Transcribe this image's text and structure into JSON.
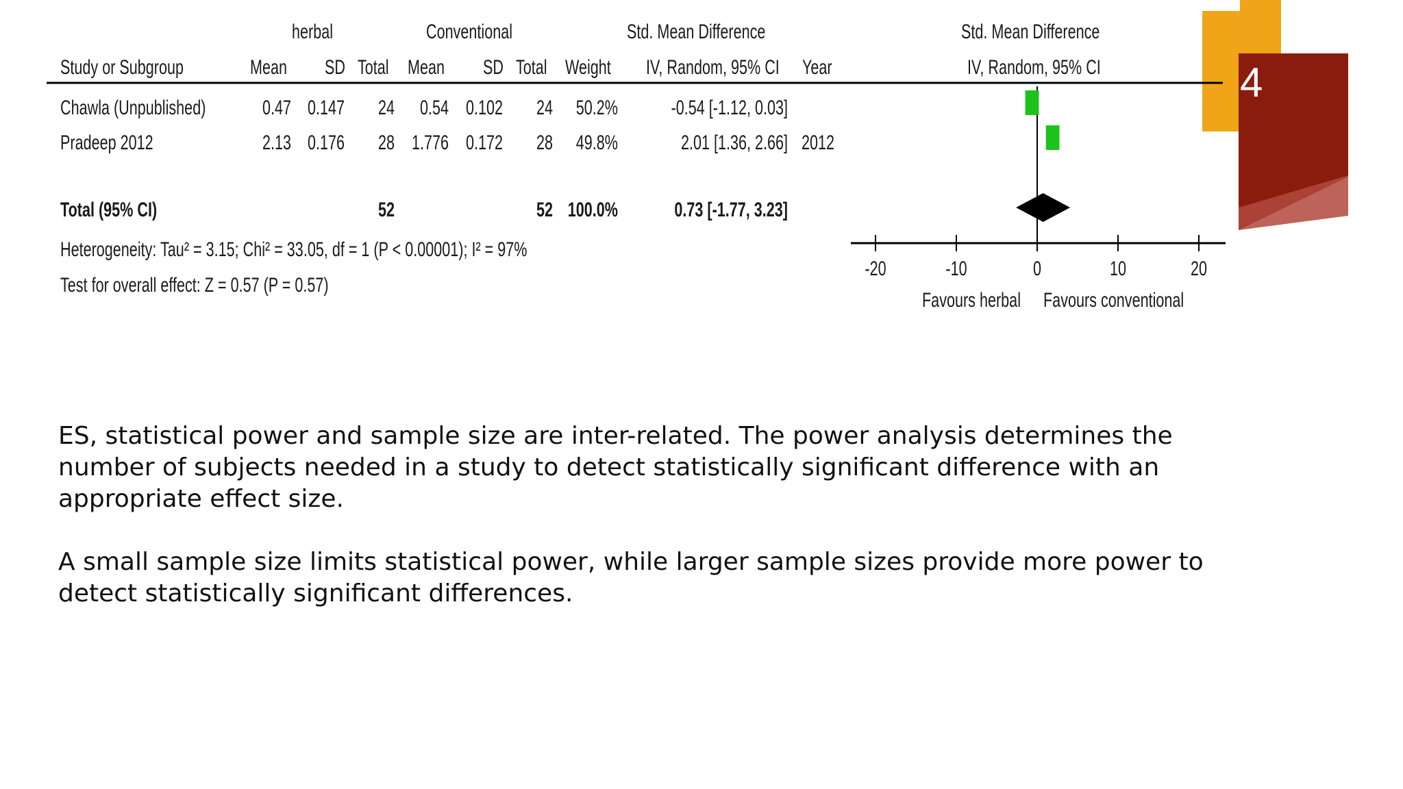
{
  "slide_number": "4",
  "colors": {
    "accent_orange": "#f0a418",
    "accent_red": "#8a1c0e",
    "marker_green": "#1bc31b",
    "diamond": "#000000"
  },
  "forest": {
    "group_headers": {
      "herbal": "herbal",
      "conventional": "Conventional",
      "smd_left": "Std. Mean Difference",
      "smd_right": "Std. Mean Difference"
    },
    "columns": {
      "study": "Study or Subgroup",
      "mean1": "Mean",
      "sd1": "SD",
      "total1": "Total",
      "mean2": "Mean",
      "sd2": "SD",
      "total2": "Total",
      "weight": "Weight",
      "ci": "IV, Random, 95% CI",
      "year": "Year",
      "plot_ci": "IV, Random, 95% CI"
    },
    "rows": [
      {
        "study": "Chawla (Unpublished)",
        "mean1": "0.47",
        "sd1": "0.147",
        "total1": "24",
        "mean2": "0.54",
        "sd2": "0.102",
        "total2": "24",
        "weight": "50.2%",
        "ci": "-0.54 [-1.12, 0.03]",
        "year": ""
      },
      {
        "study": "Pradeep 2012",
        "mean1": "2.13",
        "sd1": "0.176",
        "total1": "28",
        "mean2": "1.776",
        "sd2": "0.172",
        "total2": "28",
        "weight": "49.8%",
        "ci": "2.01 [1.36, 2.66]",
        "year": "2012"
      }
    ],
    "total": {
      "study": "Total (95% CI)",
      "total1": "52",
      "total2": "52",
      "weight": "100.0%",
      "ci": "0.73 [-1.77, 3.23]"
    },
    "heterogeneity": "Heterogeneity: Tau² = 3.15; Chi² = 33.05, df = 1 (P < 0.00001); I² = 97%",
    "overall_effect": "Test for overall effect: Z = 0.57 (P = 0.57)",
    "axis": {
      "ticks": [
        "-20",
        "-10",
        "0",
        "10",
        "20"
      ],
      "label_left": "Favours herbal",
      "label_right": "Favours conventional"
    }
  },
  "chart_data": {
    "type": "forest",
    "measure": "Std. Mean Difference, IV, Random, 95% CI",
    "xlim": [
      -20,
      20
    ],
    "xticks": [
      -20,
      -10,
      0,
      10,
      20
    ],
    "studies": [
      {
        "name": "Chawla (Unpublished)",
        "smd": -0.54,
        "ci_low": -1.12,
        "ci_high": 0.03,
        "weight_pct": 50.2
      },
      {
        "name": "Pradeep 2012",
        "smd": 2.01,
        "ci_low": 1.36,
        "ci_high": 2.66,
        "weight_pct": 49.8
      }
    ],
    "pooled": {
      "name": "Total (95% CI)",
      "smd": 0.73,
      "ci_low": -1.77,
      "ci_high": 3.23
    }
  },
  "caption": {
    "paragraph1": "ES, statistical power and sample size are inter-related. The power analysis determines the number of subjects needed in a study to detect statistically significant difference with an appropriate effect size.",
    "paragraph2": "A small sample size limits statistical power, while larger sample sizes provide more power to detect statistically significant differences."
  }
}
